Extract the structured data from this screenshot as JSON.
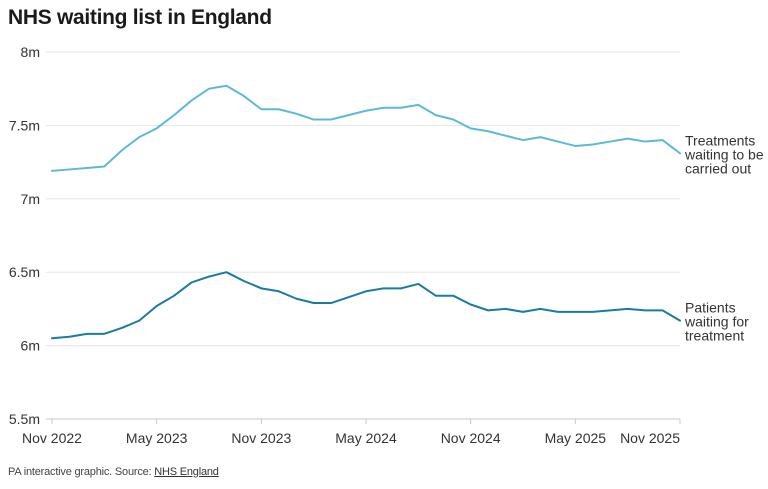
{
  "title": "NHS waiting list in England",
  "footer": {
    "text": "PA interactive graphic. Source: ",
    "link_text": "NHS England"
  },
  "colors": {
    "treatments": "#5bbad9",
    "patients": "#1a7ba3",
    "grid": "#e5e5e5",
    "axis": "#c8c8c8"
  },
  "chart_data": {
    "type": "line",
    "title": "NHS waiting list in England",
    "xlabel": "",
    "ylabel": "",
    "ylim": [
      5.5,
      8
    ],
    "y_ticks": [
      {
        "value": 8,
        "label": "8m"
      },
      {
        "value": 7.5,
        "label": "7.5m"
      },
      {
        "value": 7,
        "label": "7m"
      },
      {
        "value": 6.5,
        "label": "6.5m"
      },
      {
        "value": 6,
        "label": "6m"
      },
      {
        "value": 5.5,
        "label": "5.5m"
      }
    ],
    "x_ticks": [
      {
        "value": "2022-11",
        "label": "Nov 2022"
      },
      {
        "value": "2023-05",
        "label": "May 2023"
      },
      {
        "value": "2023-11",
        "label": "Nov 2023"
      },
      {
        "value": "2024-05",
        "label": "May 2024"
      },
      {
        "value": "2024-11",
        "label": "Nov 2024"
      },
      {
        "value": "2025-05",
        "label": "May 2025"
      },
      {
        "value": "2025-11",
        "label": "Nov 2025"
      }
    ],
    "x": [
      "2022-11",
      "2022-12",
      "2023-01",
      "2023-02",
      "2023-03",
      "2023-04",
      "2023-05",
      "2023-06",
      "2023-07",
      "2023-08",
      "2023-09",
      "2023-10",
      "2023-11",
      "2023-12",
      "2024-01",
      "2024-02",
      "2024-03",
      "2024-04",
      "2024-05",
      "2024-06",
      "2024-07",
      "2024-08",
      "2024-09",
      "2024-10",
      "2024-11",
      "2024-12",
      "2025-01",
      "2025-02",
      "2025-03",
      "2025-04",
      "2025-05",
      "2025-06",
      "2025-07",
      "2025-08",
      "2025-09",
      "2025-10",
      "2025-11"
    ],
    "grid": true,
    "series": [
      {
        "name": "Treatments waiting to be carried out",
        "label_lines": [
          "Treatments",
          "waiting to be",
          "carried out"
        ],
        "color": "#5bbad9",
        "values": [
          7.19,
          7.2,
          7.21,
          7.22,
          7.33,
          7.42,
          7.48,
          7.57,
          7.67,
          7.75,
          7.77,
          7.7,
          7.61,
          7.61,
          7.58,
          7.54,
          7.54,
          7.57,
          7.6,
          7.62,
          7.62,
          7.64,
          7.57,
          7.54,
          7.48,
          7.46,
          7.43,
          7.4,
          7.42,
          7.39,
          7.36,
          7.37,
          7.39,
          7.41,
          7.39,
          7.4,
          7.31
        ]
      },
      {
        "name": "Patients waiting for treatment",
        "label_lines": [
          "Patients",
          "waiting for",
          "treatment"
        ],
        "color": "#1a7ba3",
        "values": [
          6.05,
          6.06,
          6.08,
          6.08,
          6.12,
          6.17,
          6.27,
          6.34,
          6.43,
          6.47,
          6.5,
          6.44,
          6.39,
          6.37,
          6.32,
          6.29,
          6.29,
          6.33,
          6.37,
          6.39,
          6.39,
          6.42,
          6.34,
          6.34,
          6.28,
          6.24,
          6.25,
          6.23,
          6.25,
          6.23,
          6.23,
          6.23,
          6.24,
          6.25,
          6.24,
          6.24,
          6.17
        ]
      }
    ]
  }
}
